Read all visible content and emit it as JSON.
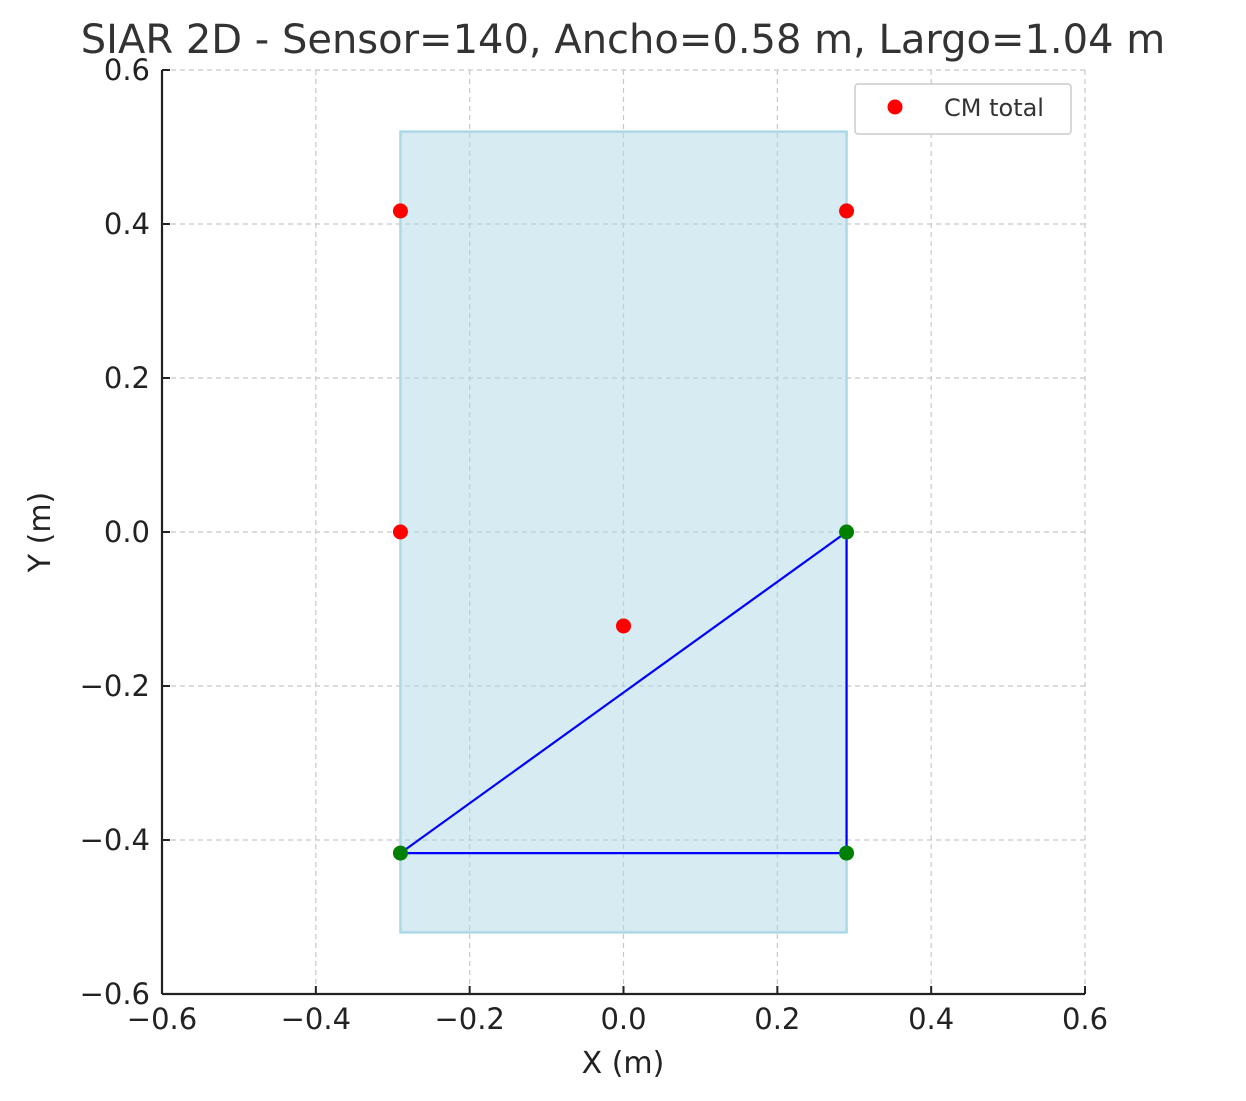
{
  "chart_data": {
    "type": "scatter",
    "title": "SIAR 2D - Sensor=140, Ancho=0.58 m, Largo=1.04 m",
    "xlabel": "X (m)",
    "ylabel": "Y (m)",
    "xlim": [
      -0.6,
      0.6
    ],
    "ylim": [
      -0.6,
      0.6
    ],
    "xticks": [
      -0.6,
      -0.4,
      -0.2,
      0.0,
      0.2,
      0.4,
      0.6
    ],
    "yticks": [
      -0.6,
      -0.4,
      -0.2,
      0.0,
      0.2,
      0.4,
      0.6
    ],
    "xtick_labels": [
      "−0.6",
      "−0.4",
      "−0.2",
      "0.0",
      "0.2",
      "0.4",
      "0.6"
    ],
    "ytick_labels": [
      "−0.6",
      "−0.4",
      "−0.2",
      "0.0",
      "0.2",
      "0.4",
      "0.6"
    ],
    "grid": true,
    "legend_position": "top-right",
    "legend": [
      {
        "label": "CM total",
        "color": "#ff0000",
        "marker": "circle"
      }
    ],
    "rectangle": {
      "x": [
        -0.29,
        0.29
      ],
      "y": [
        -0.52,
        0.52
      ],
      "fill": "#add8e6",
      "opacity": 0.5
    },
    "red_points": [
      {
        "x": -0.29,
        "y": 0.417
      },
      {
        "x": 0.29,
        "y": 0.417
      },
      {
        "x": -0.29,
        "y": 0.0
      },
      {
        "x": 0.0,
        "y": -0.122
      }
    ],
    "triangle": {
      "vertices": [
        {
          "x": -0.29,
          "y": -0.417
        },
        {
          "x": 0.29,
          "y": 0.0
        },
        {
          "x": 0.29,
          "y": -0.417
        }
      ],
      "color": "#0000ff"
    },
    "green_points": [
      {
        "x": -0.29,
        "y": -0.417
      },
      {
        "x": 0.29,
        "y": 0.0
      },
      {
        "x": 0.29,
        "y": -0.417
      }
    ],
    "colors": {
      "red": "#ff0000",
      "green": "#008000",
      "blue": "#0000ff",
      "rect": "#add8e6"
    }
  }
}
